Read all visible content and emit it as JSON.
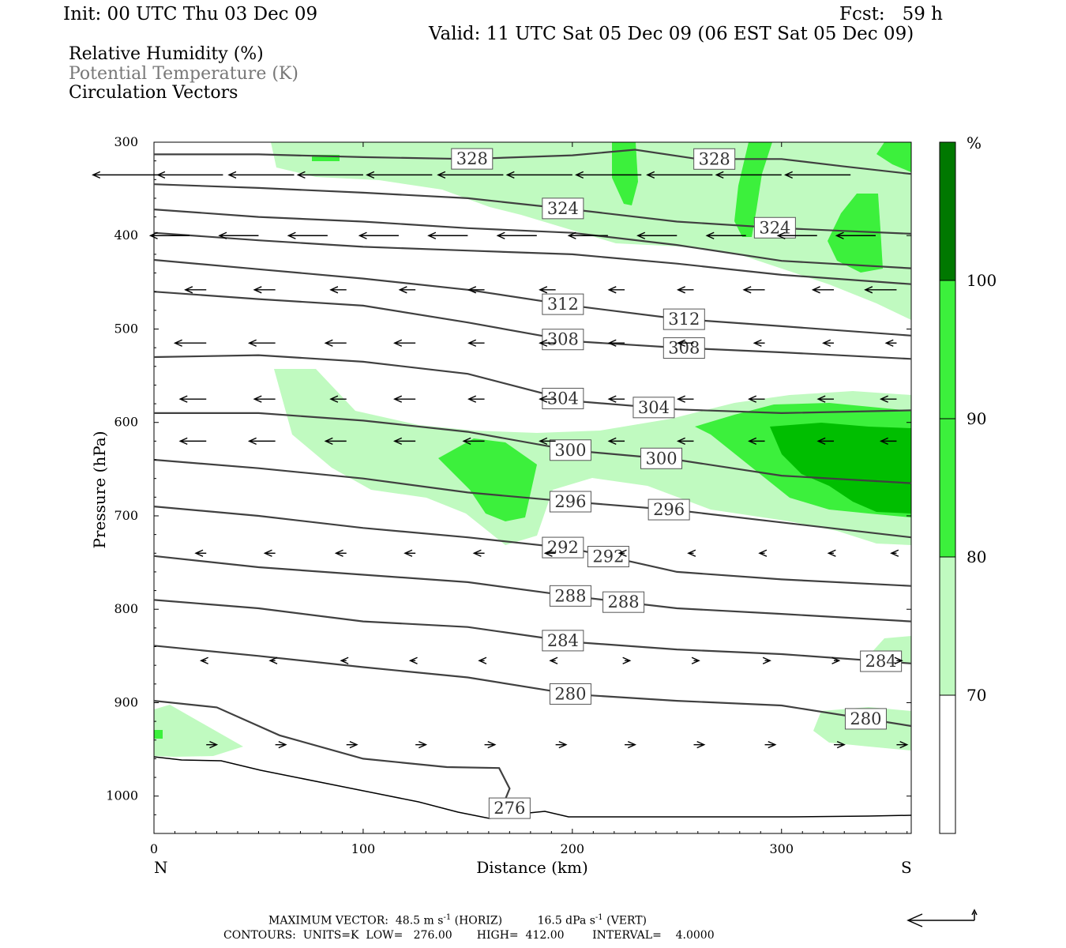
{
  "header": {
    "init": "Init: 00 UTC Thu 03 Dec 09",
    "fcst": "Fcst:   59 h",
    "valid": "Valid: 11 UTC Sat 05 Dec 09 (06 EST Sat 05 Dec 09)"
  },
  "legend": {
    "line1": "Relative Humidity (%)",
    "line2": "Potential Temperature (K)",
    "line3": "Circulation Vectors"
  },
  "footer": {
    "max_vector_label": "MAXIMUM VECTOR:",
    "max_vector_horiz": "48.5 m s",
    "horiz_exp": "-1",
    "horiz_unit": " (HORIZ)",
    "max_vector_vert": "16.5 dPa s",
    "vert_exp": "-1",
    "vert_unit": " (VERT)",
    "contours": "CONTOURS:  UNITS=K  LOW=   276.00       HIGH=  412.00        INTERVAL=    4.0000"
  },
  "colors": {
    "rh70": "#c0fac0",
    "rh80": "#3cf03c",
    "rh90": "#00be00",
    "rh100": "#007800",
    "theta_line": "#404040",
    "vector": "#000000"
  },
  "chart_data": {
    "type": "cross-section",
    "xlabel": "Distance (km)",
    "ylabel": "Pressure (hPa)",
    "x_ticks": [
      "0",
      "100",
      "200",
      "300"
    ],
    "y_ticks": [
      "300",
      "400",
      "500",
      "600",
      "700",
      "800",
      "900",
      "1000"
    ],
    "xlim": [
      0,
      362
    ],
    "ylim": [
      300,
      1040
    ],
    "x_end_labels": {
      "left": "N",
      "right": "S"
    },
    "colorbar": {
      "unit": "%",
      "levels": [
        "70",
        "80",
        "90",
        "100"
      ]
    },
    "theta_contours": [
      {
        "value": 328,
        "label": "328",
        "pts": [
          [
            0,
            313
          ],
          [
            50,
            313
          ],
          [
            100,
            316
          ],
          [
            150,
            318
          ],
          [
            200,
            314
          ],
          [
            230,
            308
          ],
          [
            260,
            318
          ],
          [
            300,
            318
          ],
          [
            330,
            326
          ],
          [
            362,
            334
          ]
        ]
      },
      {
        "value": 324,
        "label": "324",
        "pts": [
          [
            0,
            345
          ],
          [
            50,
            349
          ],
          [
            100,
            354
          ],
          [
            150,
            360
          ],
          [
            200,
            372
          ],
          [
            250,
            385
          ],
          [
            300,
            392
          ],
          [
            330,
            395
          ],
          [
            362,
            398
          ]
        ]
      },
      {
        "value": 320,
        "label": "",
        "pts": [
          [
            0,
            372
          ],
          [
            50,
            380
          ],
          [
            100,
            385
          ],
          [
            150,
            392
          ],
          [
            200,
            397
          ],
          [
            250,
            410
          ],
          [
            300,
            427
          ],
          [
            362,
            435
          ]
        ]
      },
      {
        "value": 316,
        "label": "",
        "pts": [
          [
            0,
            397
          ],
          [
            50,
            405
          ],
          [
            100,
            412
          ],
          [
            150,
            416
          ],
          [
            200,
            420
          ],
          [
            250,
            430
          ],
          [
            300,
            442
          ],
          [
            362,
            452
          ]
        ]
      },
      {
        "value": 312,
        "label": "312",
        "pts": [
          [
            0,
            426
          ],
          [
            50,
            436
          ],
          [
            100,
            446
          ],
          [
            150,
            458
          ],
          [
            200,
            475
          ],
          [
            250,
            489
          ],
          [
            300,
            497
          ],
          [
            362,
            507
          ]
        ]
      },
      {
        "value": 308,
        "label": "308",
        "pts": [
          [
            0,
            460
          ],
          [
            50,
            468
          ],
          [
            100,
            475
          ],
          [
            150,
            493
          ],
          [
            200,
            513
          ],
          [
            250,
            520
          ],
          [
            300,
            525
          ],
          [
            362,
            532
          ]
        ]
      },
      {
        "value": 304,
        "label": "304",
        "pts": [
          [
            0,
            530
          ],
          [
            50,
            528
          ],
          [
            100,
            535
          ],
          [
            150,
            548
          ],
          [
            200,
            577
          ],
          [
            250,
            586
          ],
          [
            300,
            590
          ],
          [
            362,
            587
          ]
        ]
      },
      {
        "value": 300,
        "label": "300",
        "pts": [
          [
            0,
            590
          ],
          [
            50,
            590
          ],
          [
            100,
            598
          ],
          [
            150,
            610
          ],
          [
            200,
            630
          ],
          [
            250,
            640
          ],
          [
            300,
            657
          ],
          [
            362,
            665
          ]
        ]
      },
      {
        "value": 296,
        "label": "296",
        "pts": [
          [
            0,
            640
          ],
          [
            50,
            649
          ],
          [
            100,
            660
          ],
          [
            150,
            675
          ],
          [
            200,
            685
          ],
          [
            250,
            694
          ],
          [
            300,
            707
          ],
          [
            362,
            723
          ]
        ]
      },
      {
        "value": 292,
        "label": "292",
        "pts": [
          [
            0,
            690
          ],
          [
            50,
            700
          ],
          [
            100,
            713
          ],
          [
            150,
            723
          ],
          [
            200,
            735
          ],
          [
            250,
            760
          ],
          [
            300,
            768
          ],
          [
            362,
            775
          ]
        ]
      },
      {
        "value": 288,
        "label": "288",
        "pts": [
          [
            0,
            743
          ],
          [
            50,
            755
          ],
          [
            100,
            763
          ],
          [
            150,
            771
          ],
          [
            200,
            786
          ],
          [
            250,
            799
          ],
          [
            300,
            805
          ],
          [
            362,
            813
          ]
        ]
      },
      {
        "value": 284,
        "label": "284",
        "pts": [
          [
            0,
            790
          ],
          [
            50,
            799
          ],
          [
            100,
            813
          ],
          [
            150,
            819
          ],
          [
            200,
            835
          ],
          [
            250,
            843
          ],
          [
            300,
            848
          ],
          [
            362,
            858
          ]
        ]
      },
      {
        "value": 280,
        "label": "280",
        "pts": [
          [
            0,
            839
          ],
          [
            50,
            850
          ],
          [
            100,
            862
          ],
          [
            150,
            873
          ],
          [
            200,
            891
          ],
          [
            250,
            898
          ],
          [
            300,
            903
          ],
          [
            362,
            925
          ]
        ]
      },
      {
        "value": 276,
        "label": "276",
        "pts": [
          [
            0,
            898
          ],
          [
            30,
            905
          ],
          [
            60,
            935
          ],
          [
            100,
            960
          ],
          [
            140,
            969
          ],
          [
            165,
            970
          ],
          [
            170,
            992
          ],
          [
            168,
            1003
          ]
        ]
      }
    ],
    "vectors": [
      {
        "p": 335,
        "items": [
          [
            2,
            -25
          ],
          [
            33,
            -25
          ],
          [
            67,
            -25
          ],
          [
            100,
            -25
          ],
          [
            133,
            -25
          ],
          [
            167,
            -25
          ],
          [
            200,
            -25
          ],
          [
            233,
            -25
          ],
          [
            267,
            -25
          ],
          [
            300,
            -25
          ],
          [
            333,
            -25
          ]
        ]
      },
      {
        "p": 400,
        "items": [
          [
            17,
            -15
          ],
          [
            50,
            -15
          ],
          [
            83,
            -15
          ],
          [
            117,
            -15
          ],
          [
            150,
            -15
          ],
          [
            183,
            -15
          ],
          [
            217,
            -15
          ],
          [
            250,
            -15
          ],
          [
            283,
            -15
          ],
          [
            317,
            -15
          ],
          [
            345,
            -15
          ]
        ]
      },
      {
        "p": 458,
        "items": [
          [
            25,
            -8
          ],
          [
            58,
            -8
          ],
          [
            92,
            -6
          ],
          [
            125,
            -6
          ],
          [
            158,
            -6
          ],
          [
            192,
            -6
          ],
          [
            225,
            -6
          ],
          [
            258,
            -6
          ],
          [
            292,
            -8
          ],
          [
            325,
            -8
          ],
          [
            355,
            -12
          ]
        ]
      },
      {
        "p": 515,
        "items": [
          [
            25,
            -12
          ],
          [
            58,
            -10
          ],
          [
            92,
            -8
          ],
          [
            125,
            -8
          ],
          [
            158,
            -6
          ],
          [
            192,
            -6
          ],
          [
            225,
            -6
          ],
          [
            258,
            -6
          ],
          [
            292,
            -4
          ],
          [
            325,
            -4
          ],
          [
            355,
            -4
          ]
        ]
      },
      {
        "p": 575,
        "items": [
          [
            25,
            -10
          ],
          [
            58,
            -8
          ],
          [
            92,
            -6
          ],
          [
            125,
            -8
          ],
          [
            158,
            -6
          ],
          [
            192,
            -6
          ],
          [
            225,
            -6
          ],
          [
            258,
            -6
          ],
          [
            292,
            -6
          ],
          [
            325,
            -6
          ],
          [
            355,
            -6
          ]
        ]
      },
      {
        "p": 620,
        "items": [
          [
            25,
            -10
          ],
          [
            58,
            -10
          ],
          [
            92,
            -8
          ],
          [
            125,
            -8
          ],
          [
            158,
            -8
          ],
          [
            192,
            -6
          ],
          [
            225,
            -6
          ],
          [
            258,
            -6
          ],
          [
            292,
            -6
          ],
          [
            325,
            -6
          ],
          [
            355,
            -6
          ]
        ]
      },
      {
        "p": 740,
        "items": [
          [
            25,
            -4
          ],
          [
            58,
            -4
          ],
          [
            92,
            -4
          ],
          [
            125,
            -4
          ],
          [
            158,
            -4
          ],
          [
            192,
            -4
          ],
          [
            225,
            -2
          ],
          [
            258,
            -2
          ],
          [
            292,
            -2
          ],
          [
            325,
            -2
          ],
          [
            355,
            -2
          ]
        ]
      },
      {
        "p": 855,
        "items": [
          [
            25,
            -2
          ],
          [
            58,
            -2
          ],
          [
            92,
            -2
          ],
          [
            125,
            -2
          ],
          [
            158,
            -2
          ],
          [
            192,
            -2
          ],
          [
            225,
            2
          ],
          [
            258,
            2
          ],
          [
            292,
            2
          ],
          [
            325,
            2
          ],
          [
            355,
            2
          ]
        ]
      },
      {
        "p": 945,
        "items": [
          [
            25,
            4
          ],
          [
            58,
            4
          ],
          [
            92,
            4
          ],
          [
            125,
            4
          ],
          [
            158,
            4
          ],
          [
            192,
            4
          ],
          [
            225,
            4
          ],
          [
            258,
            4
          ],
          [
            292,
            4
          ],
          [
            325,
            4
          ],
          [
            355,
            4
          ]
        ]
      }
    ]
  }
}
